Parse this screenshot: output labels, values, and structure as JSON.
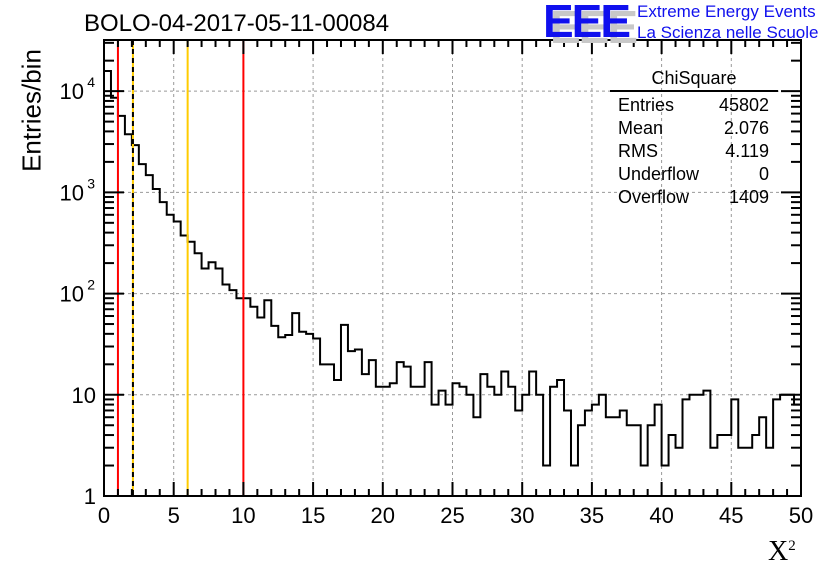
{
  "chart_data": {
    "type": "bar",
    "style": "step-histogram",
    "title": "BOLO-04-2017-05-11-00084",
    "xlabel": "X",
    "xlabel_superscript": "2",
    "ylabel": "Entries/bin",
    "xlim": [
      0,
      50
    ],
    "ylim": [
      1,
      32000
    ],
    "yscale": "log",
    "grid": true,
    "bin_width": 0.5,
    "x_ticks": [
      "0",
      "5",
      "10",
      "15",
      "20",
      "25",
      "30",
      "35",
      "40",
      "45",
      "50"
    ],
    "y_ticks": [
      {
        "value": 1,
        "base": "1",
        "exp": ""
      },
      {
        "value": 10,
        "base": "10",
        "exp": ""
      },
      {
        "value": 100,
        "base": "10",
        "exp": "2"
      },
      {
        "value": 1000,
        "base": "10",
        "exp": "3"
      },
      {
        "value": 10000,
        "base": "10",
        "exp": "4"
      }
    ],
    "values": [
      15800,
      8600,
      5700,
      3750,
      2930,
      1900,
      1480,
      1080,
      800,
      600,
      515,
      375,
      325,
      250,
      177,
      204,
      177,
      123,
      108,
      90,
      90,
      74,
      58,
      86,
      48,
      37,
      39,
      64,
      42,
      40,
      36,
      20,
      20,
      14,
      49,
      27,
      28,
      16,
      22,
      12,
      12,
      13,
      21,
      19,
      12,
      12,
      21,
      8,
      11,
      8,
      13,
      12,
      10,
      6,
      16,
      12,
      10,
      17,
      12,
      7,
      10,
      17,
      10,
      2,
      12,
      14,
      7,
      2,
      5,
      7,
      8,
      10,
      6,
      6,
      7,
      5,
      5,
      2,
      5,
      8,
      2,
      4,
      3,
      9,
      10,
      10,
      11,
      3,
      4,
      4,
      9,
      3,
      3,
      4,
      6,
      3,
      9,
      10,
      10,
      8
    ],
    "markers": [
      {
        "x": 1,
        "color": "#ff0000",
        "style": "solid"
      },
      {
        "x": 2.076,
        "color": "#ffcc00",
        "style": "dashed-black"
      },
      {
        "x": 6,
        "color": "#ffcc00",
        "style": "solid"
      },
      {
        "x": 10,
        "color": "#ff0000",
        "style": "solid"
      }
    ],
    "legend_position": "top-right"
  },
  "stats": {
    "title": "ChiSquare",
    "rows": [
      {
        "label": "Entries",
        "value": "45802"
      },
      {
        "label": "Mean",
        "value": "2.076"
      },
      {
        "label": "RMS",
        "value": "4.119"
      },
      {
        "label": "Underflow",
        "value": "0"
      },
      {
        "label": "Overflow",
        "value": "1409"
      }
    ]
  },
  "logo": {
    "mark": "EEE",
    "line1": "Extreme Energy Events",
    "line2": "La Scienza nelle Scuole",
    "color": "#1010ee"
  }
}
